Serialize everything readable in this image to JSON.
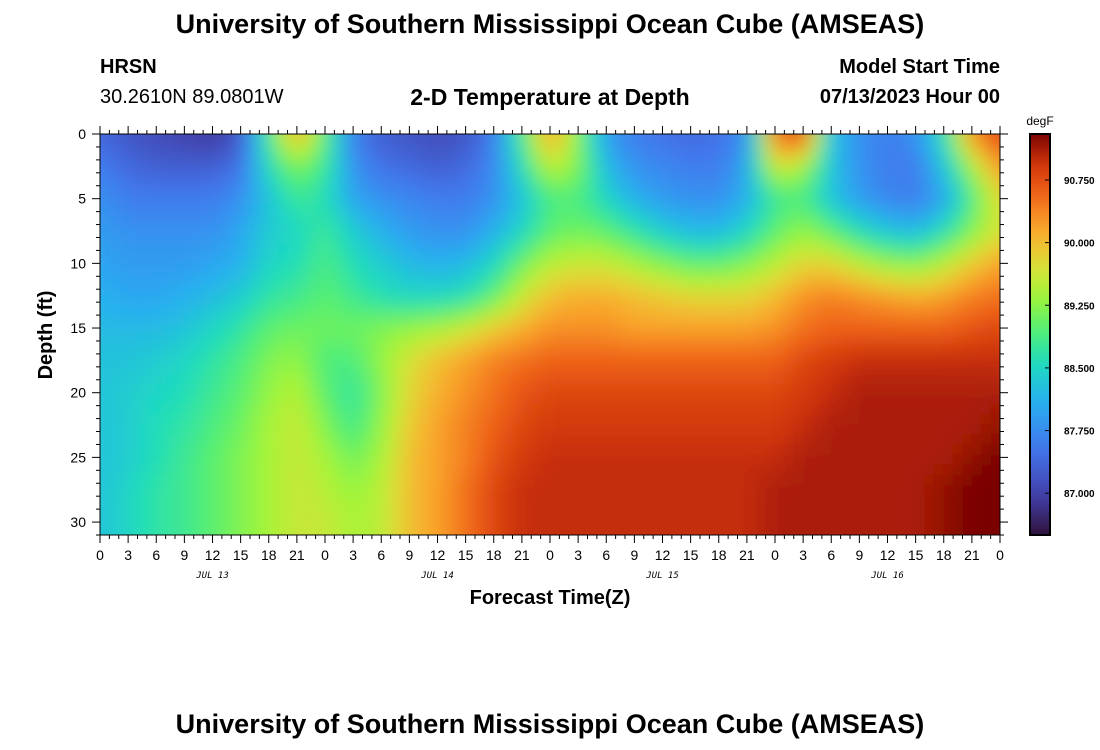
{
  "header": {
    "title": "University of Southern Mississippi Ocean Cube (AMSEAS)",
    "station": "HRSN",
    "coordinates": "30.2610N  89.0801W",
    "plot_title": "2-D Temperature at Depth",
    "model_label": "Model Start Time",
    "model_time": "07/13/2023 Hour 00"
  },
  "footer": {
    "title": "University of Southern Mississippi Ocean Cube (AMSEAS)"
  },
  "chart_data": {
    "type": "heatmap",
    "title": "2-D Temperature at Depth",
    "xlabel": "Forecast Time(Z)",
    "ylabel": "Depth (ft)",
    "x_range_hours": [
      0,
      96
    ],
    "y_range_ft": [
      0,
      31
    ],
    "x_tick_labels": [
      "0",
      "3",
      "6",
      "9",
      "12",
      "15",
      "18",
      "21",
      "0",
      "3",
      "6",
      "9",
      "12",
      "15",
      "18",
      "21",
      "0",
      "3",
      "6",
      "9",
      "12",
      "15",
      "18",
      "21",
      "0",
      "3",
      "6",
      "9",
      "12",
      "15",
      "18",
      "21",
      "0"
    ],
    "y_ticks": [
      0,
      5,
      10,
      15,
      20,
      25,
      30
    ],
    "date_labels": [
      {
        "label": "JUL 13",
        "hour": 12
      },
      {
        "label": "JUL 14",
        "hour": 36
      },
      {
        "label": "JUL 15",
        "hour": 60
      },
      {
        "label": "JUL 16",
        "hour": 84
      }
    ],
    "colorbar": {
      "unit": "degF",
      "min": 86.5,
      "max": 91.3,
      "ticks": [
        87.0,
        87.75,
        88.5,
        89.25,
        90.0,
        90.75
      ],
      "tick_labels": [
        "87.000",
        "87.750",
        "88.500",
        "89.250",
        "90.000",
        "90.750"
      ]
    },
    "temperature_grid": {
      "times_hours": [
        0,
        3,
        6,
        9,
        12,
        15,
        18,
        21,
        24,
        27,
        30,
        33,
        36,
        39,
        42,
        45,
        48,
        51,
        54,
        57,
        60,
        63,
        66,
        69,
        72,
        75,
        78,
        81,
        84,
        87,
        90,
        93,
        96
      ],
      "depths_ft": [
        0,
        2.5,
        5,
        7.5,
        10,
        12.5,
        15,
        17.5,
        20,
        22.5,
        25,
        27.5,
        30
      ],
      "values_degF": [
        [
          87.4,
          87.2,
          87.1,
          87.0,
          86.9,
          87.2,
          88.9,
          90.2,
          89.0,
          87.6,
          87.3,
          87.2,
          87.1,
          87.2,
          87.6,
          88.9,
          90.3,
          89.2,
          87.9,
          87.6,
          87.5,
          87.4,
          87.5,
          87.7,
          90.6,
          90.9,
          88.2,
          87.8,
          87.6,
          87.8,
          88.6,
          90.4,
          90.8
        ],
        [
          87.6,
          87.4,
          87.3,
          87.3,
          87.3,
          87.5,
          88.6,
          89.2,
          88.8,
          87.8,
          87.5,
          87.4,
          87.3,
          87.4,
          87.7,
          88.6,
          89.6,
          89.2,
          88.2,
          87.8,
          87.7,
          87.6,
          87.6,
          88.0,
          89.7,
          89.4,
          88.3,
          87.8,
          87.6,
          87.6,
          88.3,
          89.4,
          90.3
        ],
        [
          87.8,
          87.6,
          87.6,
          87.6,
          87.6,
          87.8,
          88.3,
          88.8,
          88.6,
          88.0,
          87.8,
          87.7,
          87.6,
          87.6,
          87.8,
          88.3,
          88.9,
          88.9,
          88.5,
          88.1,
          87.9,
          87.8,
          87.8,
          88.1,
          88.8,
          88.9,
          88.3,
          87.9,
          87.7,
          87.6,
          88.0,
          88.9,
          89.8
        ],
        [
          87.9,
          87.8,
          87.8,
          87.8,
          87.8,
          88.0,
          88.4,
          88.5,
          88.8,
          88.4,
          88.1,
          87.9,
          87.8,
          87.8,
          88.1,
          88.5,
          89.0,
          89.1,
          89.0,
          88.7,
          88.4,
          88.2,
          88.2,
          88.5,
          89.0,
          89.3,
          89.0,
          88.6,
          88.3,
          88.2,
          88.6,
          89.2,
          89.7
        ],
        [
          88.0,
          87.9,
          87.9,
          87.9,
          88.0,
          88.1,
          88.5,
          88.6,
          88.9,
          88.6,
          88.4,
          88.2,
          88.1,
          88.2,
          88.5,
          89.1,
          89.5,
          89.6,
          89.6,
          89.4,
          89.2,
          89.0,
          89.0,
          89.2,
          89.5,
          89.8,
          89.8,
          89.5,
          89.3,
          89.2,
          89.5,
          89.9,
          90.2
        ],
        [
          88.1,
          88.0,
          88.0,
          88.1,
          88.2,
          88.4,
          88.7,
          88.8,
          89.0,
          88.8,
          88.6,
          88.5,
          88.5,
          88.6,
          89.0,
          89.6,
          90.0,
          90.1,
          90.1,
          90.0,
          89.9,
          89.8,
          89.8,
          89.8,
          90.0,
          90.3,
          90.4,
          90.3,
          90.2,
          90.1,
          90.2,
          90.4,
          90.5
        ],
        [
          88.2,
          88.2,
          88.2,
          88.3,
          88.5,
          88.7,
          89.0,
          89.1,
          89.1,
          89.1,
          89.2,
          89.3,
          89.4,
          89.6,
          89.9,
          90.1,
          90.3,
          90.3,
          90.3,
          90.2,
          90.2,
          90.2,
          90.2,
          90.2,
          90.3,
          90.5,
          90.6,
          90.6,
          90.6,
          90.6,
          90.6,
          90.7,
          90.8
        ],
        [
          88.3,
          88.3,
          88.4,
          88.5,
          88.7,
          88.9,
          89.2,
          89.3,
          88.9,
          88.9,
          89.3,
          89.7,
          90.0,
          90.2,
          90.4,
          90.5,
          90.6,
          90.6,
          90.6,
          90.6,
          90.6,
          90.6,
          90.6,
          90.6,
          90.6,
          90.8,
          90.9,
          91.0,
          91.0,
          91.0,
          91.0,
          91.0,
          91.0
        ],
        [
          88.3,
          88.4,
          88.5,
          88.6,
          88.8,
          89.0,
          89.3,
          89.5,
          89.0,
          88.7,
          89.2,
          89.8,
          90.1,
          90.3,
          90.5,
          90.7,
          90.8,
          90.8,
          90.8,
          90.8,
          90.8,
          90.8,
          90.8,
          90.8,
          90.8,
          90.9,
          91.0,
          91.1,
          91.1,
          91.1,
          91.1,
          91.1,
          91.1
        ],
        [
          88.3,
          88.4,
          88.6,
          88.7,
          88.9,
          89.1,
          89.4,
          89.6,
          89.2,
          88.8,
          89.3,
          89.9,
          90.2,
          90.4,
          90.6,
          90.8,
          90.9,
          90.9,
          90.9,
          90.9,
          90.9,
          90.9,
          90.9,
          90.9,
          90.9,
          91.0,
          91.1,
          91.1,
          91.1,
          91.1,
          91.1,
          91.1,
          91.2
        ],
        [
          88.3,
          88.4,
          88.6,
          88.8,
          89.0,
          89.2,
          89.4,
          89.6,
          89.4,
          89.1,
          89.4,
          90.0,
          90.2,
          90.4,
          90.7,
          90.9,
          91.0,
          91.0,
          91.0,
          91.0,
          91.0,
          91.0,
          91.0,
          91.0,
          91.0,
          91.1,
          91.1,
          91.1,
          91.1,
          91.1,
          91.1,
          91.2,
          91.3
        ],
        [
          88.3,
          88.5,
          88.7,
          88.8,
          89.0,
          89.2,
          89.4,
          89.6,
          89.5,
          89.3,
          89.5,
          90.0,
          90.2,
          90.5,
          90.8,
          91.0,
          91.0,
          91.0,
          91.0,
          91.0,
          91.0,
          91.0,
          91.0,
          91.0,
          91.1,
          91.1,
          91.1,
          91.1,
          91.1,
          91.1,
          91.2,
          91.3,
          91.4
        ],
        [
          88.3,
          88.5,
          88.7,
          88.8,
          89.0,
          89.2,
          89.4,
          89.6,
          89.6,
          89.4,
          89.5,
          90.0,
          90.2,
          90.5,
          90.8,
          91.0,
          91.0,
          91.0,
          91.0,
          91.0,
          91.0,
          91.0,
          91.0,
          91.0,
          91.1,
          91.1,
          91.1,
          91.1,
          91.1,
          91.1,
          91.2,
          91.3,
          91.4
        ]
      ]
    }
  }
}
